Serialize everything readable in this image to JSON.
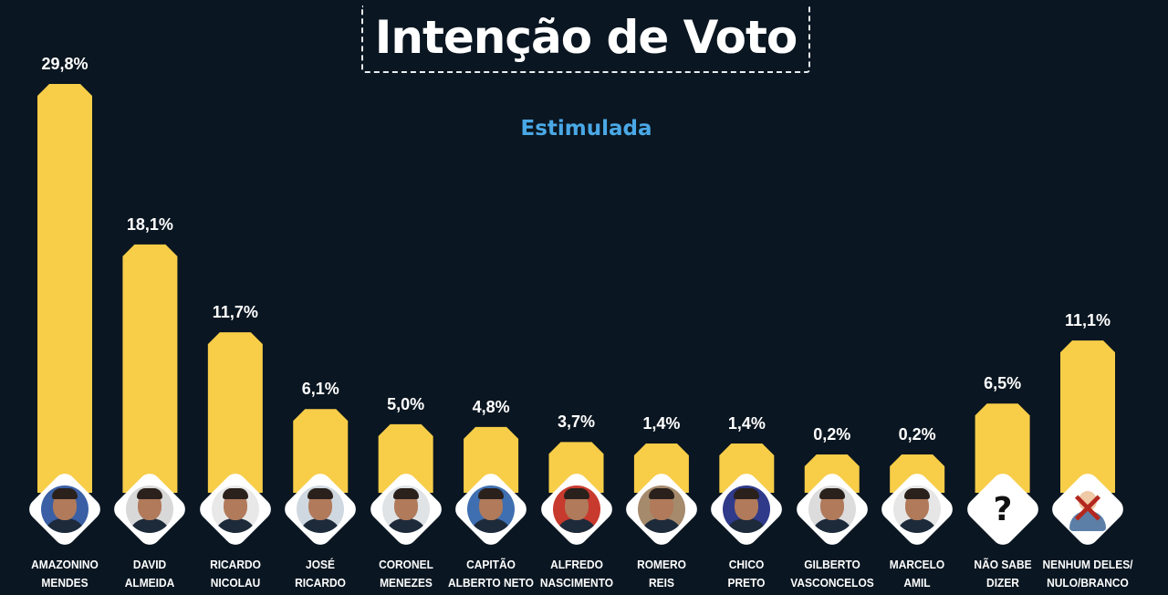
{
  "header": {
    "title": "Intenção de Voto",
    "subtitle": "Estimulada"
  },
  "colors": {
    "background": "#0a1621",
    "bar": "#f8cd48",
    "title": "#ffffff",
    "subtitle": "#4aa8e6",
    "avatar_frame": "#ffffff"
  },
  "chart_data": {
    "type": "bar",
    "title": "Intenção de Voto",
    "subtitle": "Estimulada",
    "ylim": [
      0,
      30
    ],
    "grid": false,
    "categories": [
      [
        "AMAZONINO",
        "MENDES"
      ],
      [
        "DAVID",
        "ALMEIDA"
      ],
      [
        "RICARDO",
        "NICOLAU"
      ],
      [
        "JOSÉ",
        "RICARDO"
      ],
      [
        "CORONEL",
        "MENEZES"
      ],
      [
        "CAPITÃO",
        "ALBERTO NETO"
      ],
      [
        "ALFREDO",
        "NASCIMENTO"
      ],
      [
        "ROMERO",
        "REIS"
      ],
      [
        "CHICO",
        "PRETO"
      ],
      [
        "GILBERTO",
        "VASCONCELOS"
      ],
      [
        "MARCELO",
        "AMIL"
      ],
      [
        "NÃO SABE",
        "DIZER"
      ],
      [
        "NENHUM DELES/",
        "NULO/BRANCO"
      ]
    ],
    "values": [
      29.8,
      18.1,
      11.7,
      6.1,
      5.0,
      4.8,
      3.7,
      1.4,
      1.4,
      0.2,
      0.2,
      6.5,
      11.1
    ],
    "value_labels": [
      "29,8%",
      "18,1%",
      "11,7%",
      "6,1%",
      "5,0%",
      "4,8%",
      "3,7%",
      "1,4%",
      "1,4%",
      "0,2%",
      "0,2%",
      "6,5%",
      "11,1%"
    ],
    "avatar_icons": [
      "candidate-photo",
      "candidate-photo",
      "candidate-photo",
      "candidate-photo",
      "candidate-photo",
      "candidate-photo",
      "candidate-photo",
      "candidate-photo",
      "candidate-photo",
      "candidate-photo",
      "candidate-photo",
      "question-mark-icon",
      "crossed-out-person-icon"
    ]
  }
}
